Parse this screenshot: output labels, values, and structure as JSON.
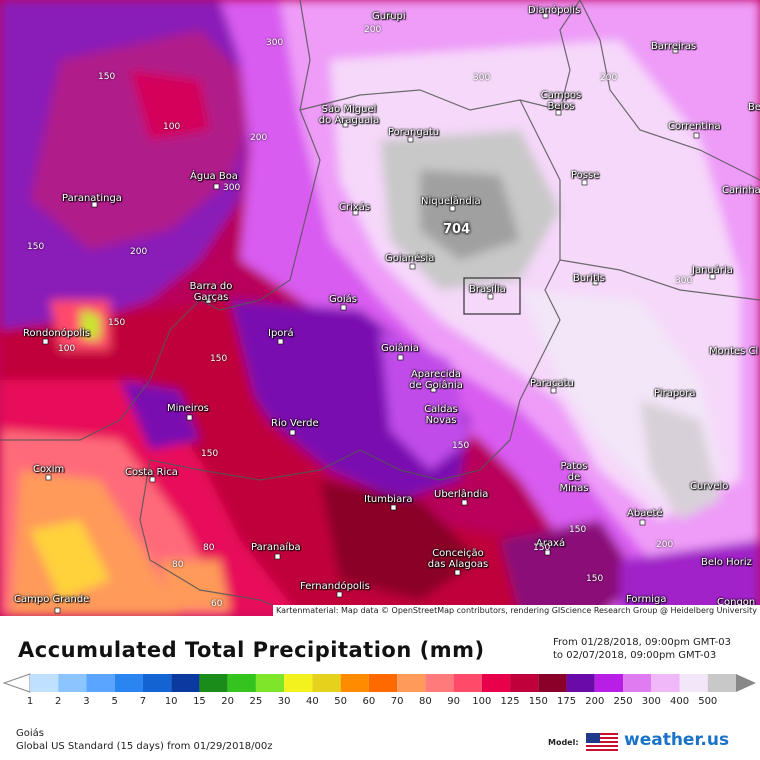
{
  "title": "Accumulated Total Precipitation (mm)",
  "range": {
    "from": "From 01/28/2018, 09:00pm GMT-03",
    "to": "to 02/07/2018, 09:00pm GMT-03"
  },
  "region": "Goiás",
  "model": "Global US Standard (15 days) from 01/29/2018/00z",
  "model_label": "Model:",
  "brand": "weather.us",
  "attribution": "Kartenmaterial: Map data © OpenStreetMap contributors, rendering GIScience Research Group @ Heidelberg University",
  "max_value": "704",
  "scale": {
    "ticks": [
      "1",
      "2",
      "3",
      "5",
      "7",
      "10",
      "15",
      "20",
      "25",
      "30",
      "40",
      "50",
      "60",
      "70",
      "80",
      "90",
      "100",
      "125",
      "150",
      "175",
      "200",
      "250",
      "300",
      "400",
      "500"
    ],
    "colors": [
      "#bfe0ff",
      "#8cc4ff",
      "#5aa5ff",
      "#2b85f0",
      "#1463d2",
      "#0a3aa0",
      "#1a8c1a",
      "#34c41e",
      "#7ee52a",
      "#f4f21e",
      "#e6d21c",
      "#ff8c00",
      "#ff6a00",
      "#ff9a5a",
      "#ff7a7a",
      "#ff4a6a",
      "#e8004a",
      "#c0003a",
      "#8a0028",
      "#6a0aa8",
      "#b81ee6",
      "#e07cf2",
      "#f0b8f8",
      "#f2e6f8",
      "#c8c8c8"
    ]
  },
  "cities": [
    {
      "name": "Gurupi"
    },
    {
      "name": "Dianópolis"
    },
    {
      "name": "Barreiras"
    },
    {
      "name": "São Miguel do Araguaia"
    },
    {
      "name": "Porangatu"
    },
    {
      "name": "Campos Belos"
    },
    {
      "name": "Correntina"
    },
    {
      "name": "Água Boa"
    },
    {
      "name": "Paranatinga"
    },
    {
      "name": "Crixás"
    },
    {
      "name": "Niquelândia"
    },
    {
      "name": "Posse"
    },
    {
      "name": "Carinha"
    },
    {
      "name": "Goianésia"
    },
    {
      "name": "Buritis"
    },
    {
      "name": "Januária"
    },
    {
      "name": "Barra do Garças"
    },
    {
      "name": "Goiás"
    },
    {
      "name": "Brasília"
    },
    {
      "name": "Rondonópolis"
    },
    {
      "name": "Iporá"
    },
    {
      "name": "Goiânia"
    },
    {
      "name": "Montes Cl"
    },
    {
      "name": "Aparecida de Goiânia"
    },
    {
      "name": "Paracatu"
    },
    {
      "name": "Mineiros"
    },
    {
      "name": "Caldas Novas"
    },
    {
      "name": "Pirapora"
    },
    {
      "name": "Rio Verde"
    },
    {
      "name": "Coxim"
    },
    {
      "name": "Costa Rica"
    },
    {
      "name": "Patos de Minas"
    },
    {
      "name": "Itumbiara"
    },
    {
      "name": "Uberlândia"
    },
    {
      "name": "Curvelo"
    },
    {
      "name": "Abaeté"
    },
    {
      "name": "Araxá"
    },
    {
      "name": "Paranaíba"
    },
    {
      "name": "Conceição das Alagoas"
    },
    {
      "name": "Belo Horiz"
    },
    {
      "name": "Campo Grande"
    },
    {
      "name": "Fernandópolis"
    },
    {
      "name": "Formiga"
    },
    {
      "name": "Congon"
    },
    {
      "name": "Be"
    }
  ],
  "contour_values": [
    "300",
    "200",
    "300",
    "200",
    "150",
    "100",
    "200",
    "300",
    "200",
    "150",
    "300",
    "150",
    "100",
    "150",
    "150",
    "80",
    "80",
    "60",
    "150",
    "200",
    "150",
    "150",
    "150"
  ]
}
